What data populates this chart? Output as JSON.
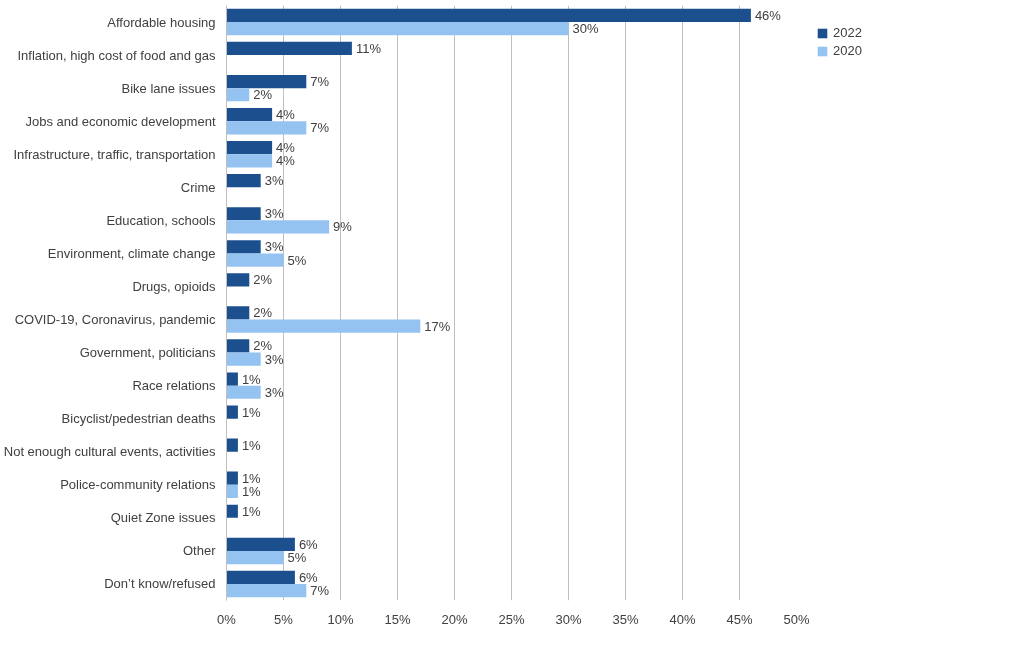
{
  "chart_data": {
    "type": "bar",
    "orientation": "horizontal",
    "categories": [
      "Affordable housing",
      "Inflation, high cost of food and gas",
      "Bike lane issues",
      "Jobs and economic development",
      "Infrastructure, traffic, transportation",
      "Crime",
      "Education, schools",
      "Environment, climate change",
      "Drugs, opioids",
      "COVID-19, Coronavirus, pandemic",
      "Government, politicians",
      "Race relations",
      "Bicyclist/pedestrian deaths",
      "Not enough cultural events, activities",
      "Police-community relations",
      "Quiet Zone issues",
      "Other",
      "Don’t know/refused"
    ],
    "series": [
      {
        "name": "2022",
        "color": "#1b4f8e",
        "values": [
          46,
          11,
          7,
          4,
          4,
          3,
          3,
          3,
          2,
          2,
          2,
          1,
          1,
          1,
          1,
          1,
          6,
          6
        ],
        "value_labels": [
          "46%",
          "11%",
          "7%",
          "4%",
          "4%",
          "3%",
          "3%",
          "3%",
          "2%",
          "2%",
          "2%",
          "1%",
          "1%",
          "1%",
          "1%",
          "1%",
          "6%",
          "6%"
        ]
      },
      {
        "name": "2020",
        "color": "#94c3f2",
        "values": [
          30,
          null,
          2,
          7,
          4,
          null,
          9,
          5,
          null,
          17,
          3,
          3,
          null,
          null,
          1,
          null,
          5,
          7
        ],
        "value_labels": [
          "30%",
          null,
          "2%",
          "7%",
          "4%",
          null,
          "9%",
          "5%",
          null,
          "17%",
          "3%",
          "3%",
          null,
          null,
          "1%",
          null,
          "5%",
          "7%"
        ]
      }
    ],
    "xlim": [
      0,
      50
    ],
    "xticks": [
      {
        "value": 0,
        "label": "0%"
      },
      {
        "value": 5,
        "label": "5%"
      },
      {
        "value": 10,
        "label": "10%"
      },
      {
        "value": 15,
        "label": "15%"
      },
      {
        "value": 20,
        "label": "20%"
      },
      {
        "value": 25,
        "label": "25%"
      },
      {
        "value": 30,
        "label": "30%"
      },
      {
        "value": 35,
        "label": "35%"
      },
      {
        "value": 40,
        "label": "40%"
      },
      {
        "value": 45,
        "label": "45%"
      },
      {
        "value": 50,
        "label": "50%"
      }
    ],
    "grid": "x",
    "legend": "right"
  }
}
